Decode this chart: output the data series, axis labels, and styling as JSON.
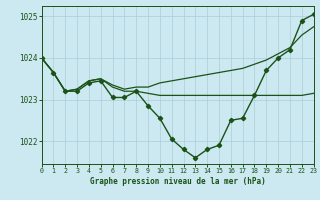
{
  "title": "Graphe pression niveau de la mer (hPa)",
  "bg_color": "#cce8f0",
  "grid_color": "#aaccda",
  "line_color": "#1a5218",
  "xlim": [
    0,
    23
  ],
  "ylim": [
    1021.45,
    1025.25
  ],
  "ytick_vals": [
    1022,
    1023,
    1024,
    1025
  ],
  "xtick_vals": [
    0,
    1,
    2,
    3,
    4,
    5,
    6,
    7,
    8,
    9,
    10,
    11,
    12,
    13,
    14,
    15,
    16,
    17,
    18,
    19,
    20,
    21,
    22,
    23
  ],
  "curve_marked": {
    "x": [
      0,
      1,
      2,
      3,
      4,
      5,
      6,
      7,
      8,
      9,
      10,
      11,
      12,
      13,
      14,
      15,
      16,
      17,
      18,
      19,
      20,
      21,
      22,
      23
    ],
    "y": [
      1024.0,
      1023.65,
      1023.2,
      1023.2,
      1023.4,
      1023.45,
      1023.05,
      1023.05,
      1023.2,
      1022.85,
      1022.55,
      1022.05,
      1021.8,
      1021.6,
      1021.8,
      1021.9,
      1022.5,
      1022.55,
      1023.1,
      1023.7,
      1024.0,
      1024.2,
      1024.9,
      1025.05
    ]
  },
  "curve_flat": {
    "x": [
      0,
      1,
      2,
      3,
      4,
      5,
      6,
      7,
      8,
      9,
      10,
      11,
      12,
      13,
      14,
      15,
      16,
      17,
      18,
      19,
      20,
      21,
      22,
      23
    ],
    "y": [
      1024.0,
      1023.65,
      1023.2,
      1023.25,
      1023.45,
      1023.5,
      1023.3,
      1023.2,
      1023.2,
      1023.15,
      1023.1,
      1023.1,
      1023.1,
      1023.1,
      1023.1,
      1023.1,
      1023.1,
      1023.1,
      1023.1,
      1023.1,
      1023.1,
      1023.1,
      1023.1,
      1023.15
    ]
  },
  "curve_rising": {
    "x": [
      0,
      1,
      2,
      3,
      4,
      5,
      6,
      7,
      8,
      9,
      10,
      11,
      12,
      13,
      14,
      15,
      16,
      17,
      18,
      19,
      20,
      21,
      22,
      23
    ],
    "y": [
      1024.0,
      1023.65,
      1023.2,
      1023.25,
      1023.45,
      1023.5,
      1023.35,
      1023.25,
      1023.3,
      1023.3,
      1023.4,
      1023.45,
      1023.5,
      1023.55,
      1023.6,
      1023.65,
      1023.7,
      1023.75,
      1023.85,
      1023.95,
      1024.1,
      1024.25,
      1024.55,
      1024.75
    ]
  }
}
